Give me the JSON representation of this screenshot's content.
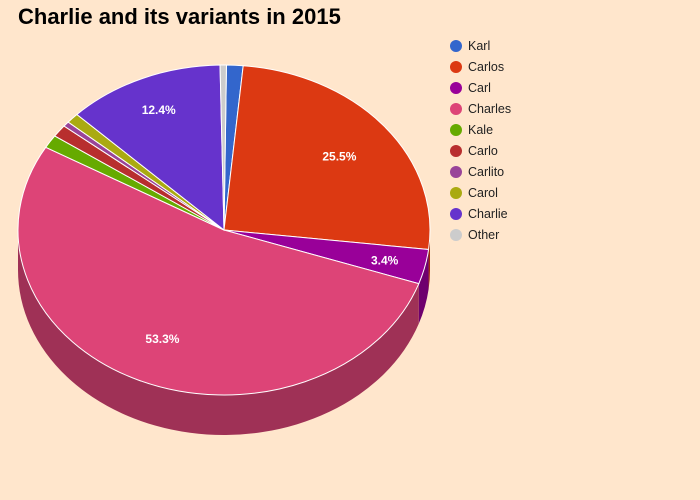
{
  "chart_data": {
    "type": "pie",
    "title": "Charlie and its variants in 2015",
    "legend_position": "top-right",
    "slices": [
      {
        "label": "Karl",
        "value": 1.3,
        "color": "#3366cc",
        "data_label": ""
      },
      {
        "label": "Carlos",
        "value": 25.5,
        "color": "#dc3912",
        "data_label": "25.5%"
      },
      {
        "label": "Carl",
        "value": 3.4,
        "color": "#990099",
        "data_label": "3.4%"
      },
      {
        "label": "Charles",
        "value": 53.3,
        "color": "#dd4477",
        "data_label": "53.3%"
      },
      {
        "label": "Kale",
        "value": 1.3,
        "color": "#66aa00",
        "data_label": ""
      },
      {
        "label": "Carlo",
        "value": 1.2,
        "color": "#b82e2e",
        "data_label": ""
      },
      {
        "label": "Carlito",
        "value": 0.5,
        "color": "#994499",
        "data_label": ""
      },
      {
        "label": "Carol",
        "value": 1.0,
        "color": "#aaaa11",
        "data_label": ""
      },
      {
        "label": "Charlie",
        "value": 12.4,
        "color": "#6633cc",
        "data_label": "12.4%"
      },
      {
        "label": "Other",
        "value": 0.5,
        "color": "#cccccc",
        "data_label": ""
      }
    ]
  }
}
